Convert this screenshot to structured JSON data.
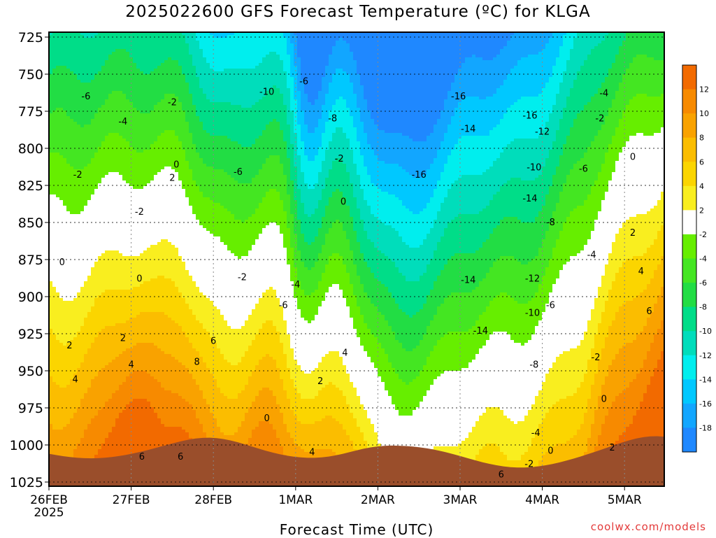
{
  "chart_data": {
    "type": "contour",
    "title": "2025022600 GFS Forecast Temperature (ºC) for KLGA",
    "xlabel": "Forecast Time (UTC)",
    "credit": "coolwx.com/models",
    "y_axis": {
      "unit": "hPa",
      "ticks": [
        725,
        750,
        775,
        800,
        825,
        850,
        875,
        900,
        925,
        950,
        975,
        1000,
        1025
      ],
      "range": [
        725,
        1025
      ],
      "inverted": true
    },
    "x_axis": {
      "ticks": [
        "26FEB",
        "27FEB",
        "28FEB",
        "1MAR",
        "2MAR",
        "3MAR",
        "4MAR",
        "5MAR"
      ],
      "year_label": "2025",
      "range_days": [
        0,
        7.5
      ]
    },
    "grid": true,
    "colorbar": {
      "position": "right",
      "levels": [
        12,
        10,
        8,
        6,
        4,
        2,
        -2,
        -4,
        -6,
        -8,
        -10,
        -12,
        -14,
        -16,
        -18
      ],
      "colors": [
        "#f26a00",
        "#f78a00",
        "#f9a200",
        "#fbbd00",
        "#fbd500",
        "#f9ee1f",
        "#ffffff",
        "#66ee00",
        "#44e622",
        "#22dd44",
        "#00dd88",
        "#00ddbb",
        "#00eeee",
        "#00c8ff",
        "#12a6ff",
        "#1f88ff"
      ],
      "labels": [
        "12",
        "10",
        "8",
        "6",
        "4",
        "2",
        "-2",
        "-4",
        "-6",
        "-8",
        "-10",
        "-12",
        "-14",
        "-16",
        "-18"
      ]
    },
    "freezing_line_color": "#c0156f",
    "terrain_color": "#9a4e2b",
    "contour_labels": [
      {
        "t": 0.45,
        "p": 765,
        "text": "-6"
      },
      {
        "t": 0.9,
        "p": 782,
        "text": "-4"
      },
      {
        "t": 0.35,
        "p": 818,
        "text": "-2"
      },
      {
        "t": 1.1,
        "p": 843,
        "text": "-2"
      },
      {
        "t": 0.16,
        "p": 877,
        "text": "0"
      },
      {
        "t": 1.1,
        "p": 888,
        "text": "0"
      },
      {
        "t": 0.25,
        "p": 933,
        "text": "2"
      },
      {
        "t": 0.32,
        "p": 956,
        "text": "4"
      },
      {
        "t": 0.9,
        "p": 928,
        "text": "2"
      },
      {
        "t": 1.0,
        "p": 946,
        "text": "4"
      },
      {
        "t": 1.13,
        "p": 1008,
        "text": "6"
      },
      {
        "t": 1.5,
        "p": 769,
        "text": "-2"
      },
      {
        "t": 1.55,
        "p": 811,
        "text": "0"
      },
      {
        "t": 1.5,
        "p": 820,
        "text": "2"
      },
      {
        "t": 1.6,
        "p": 1008,
        "text": "6"
      },
      {
        "t": 1.8,
        "p": 944,
        "text": "8"
      },
      {
        "t": 2.0,
        "p": 930,
        "text": "6"
      },
      {
        "t": 2.3,
        "p": 816,
        "text": "-6"
      },
      {
        "t": 2.35,
        "p": 887,
        "text": "-2"
      },
      {
        "t": 2.65,
        "p": 762,
        "text": "-10"
      },
      {
        "t": 2.85,
        "p": 906,
        "text": "-6"
      },
      {
        "t": 3.0,
        "p": 892,
        "text": "-4"
      },
      {
        "t": 3.1,
        "p": 755,
        "text": "-6"
      },
      {
        "t": 2.65,
        "p": 982,
        "text": "0"
      },
      {
        "t": 3.2,
        "p": 1005,
        "text": "4"
      },
      {
        "t": 3.3,
        "p": 957,
        "text": "2"
      },
      {
        "t": 3.45,
        "p": 780,
        "text": "-8"
      },
      {
        "t": 3.53,
        "p": 807,
        "text": "-2"
      },
      {
        "t": 3.58,
        "p": 836,
        "text": "0"
      },
      {
        "t": 3.6,
        "p": 938,
        "text": "4"
      },
      {
        "t": 4.5,
        "p": 818,
        "text": "-16"
      },
      {
        "t": 4.98,
        "p": 765,
        "text": "-16"
      },
      {
        "t": 5.1,
        "p": 787,
        "text": "-14"
      },
      {
        "t": 5.1,
        "p": 889,
        "text": "-14"
      },
      {
        "t": 5.25,
        "p": 923,
        "text": "-14"
      },
      {
        "t": 5.85,
        "p": 778,
        "text": "-16"
      },
      {
        "t": 6.0,
        "p": 789,
        "text": "-12"
      },
      {
        "t": 5.9,
        "p": 813,
        "text": "-10"
      },
      {
        "t": 5.85,
        "p": 834,
        "text": "-14"
      },
      {
        "t": 6.1,
        "p": 850,
        "text": "-8"
      },
      {
        "t": 5.88,
        "p": 888,
        "text": "-12"
      },
      {
        "t": 5.88,
        "p": 911,
        "text": "-10"
      },
      {
        "t": 5.9,
        "p": 946,
        "text": "-8"
      },
      {
        "t": 6.1,
        "p": 906,
        "text": "-6"
      },
      {
        "t": 5.92,
        "p": 992,
        "text": "-4"
      },
      {
        "t": 5.84,
        "p": 1013,
        "text": "-2"
      },
      {
        "t": 6.1,
        "p": 1004,
        "text": "0"
      },
      {
        "t": 5.5,
        "p": 1020,
        "text": "6"
      },
      {
        "t": 6.5,
        "p": 814,
        "text": "-6"
      },
      {
        "t": 6.75,
        "p": 763,
        "text": "-4"
      },
      {
        "t": 6.7,
        "p": 780,
        "text": "-2"
      },
      {
        "t": 6.6,
        "p": 872,
        "text": "-4"
      },
      {
        "t": 6.65,
        "p": 941,
        "text": "-2"
      },
      {
        "t": 6.75,
        "p": 969,
        "text": "0"
      },
      {
        "t": 6.85,
        "p": 1002,
        "text": "2"
      },
      {
        "t": 7.1,
        "p": 806,
        "text": "0"
      },
      {
        "t": 7.1,
        "p": 857,
        "text": "2"
      },
      {
        "t": 7.2,
        "p": 883,
        "text": "4"
      },
      {
        "t": 7.3,
        "p": 910,
        "text": "6"
      }
    ]
  }
}
